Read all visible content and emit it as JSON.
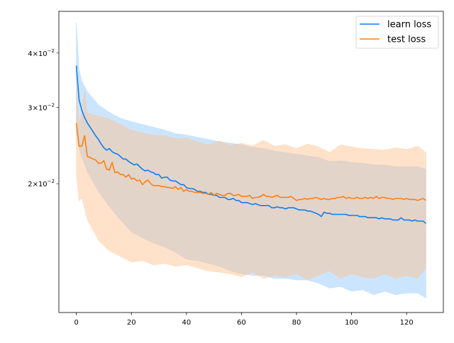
{
  "chart_data": {
    "type": "line",
    "title": "",
    "xlabel": "",
    "ylabel": "",
    "yscale": "log",
    "xlim": [
      -6.35,
      133.35
    ],
    "ylim": [
      0.0101,
      0.0499
    ],
    "grid": false,
    "legend_position": "top-right",
    "x_ticks": [
      0,
      20,
      40,
      60,
      80,
      100,
      120
    ],
    "x_tick_labels": [
      "0",
      "20",
      "40",
      "60",
      "80",
      "100",
      "120"
    ],
    "y_ticks": [
      0.02,
      0.03,
      0.04
    ],
    "y_tick_labels": [
      {
        "mant": "2",
        "exp": "−2"
      },
      {
        "mant": "3",
        "exp": "−2"
      },
      {
        "mant": "4",
        "exp": "−2"
      }
    ],
    "y_ticks_unlabeled": [
      0.05
    ],
    "series": [
      {
        "name": "learn loss",
        "color": "#0a7ff5",
        "band_color": "#8ec5ff",
        "values": [
          0.0374,
          0.0312,
          0.0295,
          0.0284,
          0.0276,
          0.027,
          0.0264,
          0.0258,
          0.0253,
          0.0247,
          0.0242,
          0.0239,
          0.0241,
          0.0237,
          0.0235,
          0.0234,
          0.0231,
          0.0228,
          0.0228,
          0.0225,
          0.0223,
          0.0221,
          0.0222,
          0.0219,
          0.0216,
          0.0214,
          0.0215,
          0.0213,
          0.0212,
          0.021,
          0.021,
          0.0206,
          0.0207,
          0.0207,
          0.0204,
          0.0203,
          0.0203,
          0.0201,
          0.0199,
          0.0199,
          0.0196,
          0.0195,
          0.0195,
          0.0194,
          0.0192,
          0.0192,
          0.0191,
          0.0191,
          0.0189,
          0.0189,
          0.0188,
          0.0188,
          0.0186,
          0.0186,
          0.0186,
          0.0184,
          0.0184,
          0.0185,
          0.0183,
          0.0183,
          0.0181,
          0.0181,
          0.0181,
          0.018,
          0.0179,
          0.018,
          0.0179,
          0.0178,
          0.0178,
          0.0178,
          0.0178,
          0.0176,
          0.0176,
          0.0177,
          0.0176,
          0.0176,
          0.0175,
          0.0176,
          0.0176,
          0.0176,
          0.0175,
          0.0174,
          0.0174,
          0.0174,
          0.0173,
          0.0173,
          0.0172,
          0.0171,
          0.017,
          0.0168,
          0.0172,
          0.0171,
          0.0171,
          0.017,
          0.017,
          0.017,
          0.017,
          0.017,
          0.017,
          0.0169,
          0.0169,
          0.0169,
          0.0169,
          0.0168,
          0.0168,
          0.0168,
          0.0167,
          0.0167,
          0.0167,
          0.0167,
          0.0166,
          0.0167,
          0.0166,
          0.0166,
          0.0166,
          0.0165,
          0.0165,
          0.0165,
          0.0167,
          0.0165,
          0.0165,
          0.0165,
          0.0164,
          0.0165,
          0.0164,
          0.0164,
          0.0164,
          0.0162
        ],
        "band_x": [
          0,
          1,
          2,
          3,
          4,
          8,
          12,
          16,
          20,
          24,
          28,
          32,
          36,
          40,
          44,
          48,
          52,
          56,
          60,
          64,
          68,
          72,
          76,
          80,
          84,
          88,
          92,
          96,
          100,
          104,
          108,
          112,
          116,
          120,
          124,
          127
        ],
        "band_upper": [
          0.047,
          0.0366,
          0.0345,
          0.0335,
          0.0326,
          0.0304,
          0.0292,
          0.0283,
          0.0278,
          0.0274,
          0.027,
          0.0266,
          0.0261,
          0.0259,
          0.0256,
          0.0253,
          0.025,
          0.0248,
          0.0246,
          0.0243,
          0.0241,
          0.0238,
          0.0236,
          0.0234,
          0.0232,
          0.023,
          0.0225,
          0.0226,
          0.0224,
          0.0223,
          0.0221,
          0.0221,
          0.0219,
          0.0219,
          0.0219,
          0.0216
        ],
        "band_lower": [
          0.0262,
          0.0241,
          0.023,
          0.0222,
          0.0213,
          0.0192,
          0.0177,
          0.0165,
          0.0155,
          0.015,
          0.0146,
          0.0143,
          0.0139,
          0.0134,
          0.0133,
          0.0131,
          0.0129,
          0.0126,
          0.0124,
          0.0123,
          0.0123,
          0.0121,
          0.0121,
          0.012,
          0.012,
          0.0118,
          0.0115,
          0.0116,
          0.0113,
          0.0114,
          0.0111,
          0.0113,
          0.0111,
          0.0112,
          0.0112,
          0.0109
        ]
      },
      {
        "name": "test loss",
        "color": "#ff7f0e",
        "band_color": "#ffbf87",
        "values": [
          0.0276,
          0.0244,
          0.0244,
          0.0258,
          0.0231,
          0.023,
          0.0228,
          0.0227,
          0.0223,
          0.0223,
          0.0226,
          0.0216,
          0.0215,
          0.0224,
          0.0212,
          0.0213,
          0.021,
          0.021,
          0.0207,
          0.021,
          0.0205,
          0.0206,
          0.0203,
          0.0204,
          0.0199,
          0.0202,
          0.0204,
          0.02,
          0.0198,
          0.0198,
          0.0198,
          0.0197,
          0.0197,
          0.0196,
          0.0196,
          0.0195,
          0.0197,
          0.0194,
          0.0196,
          0.0192,
          0.0194,
          0.0192,
          0.0192,
          0.0191,
          0.0191,
          0.0191,
          0.019,
          0.019,
          0.0189,
          0.0191,
          0.0188,
          0.019,
          0.0189,
          0.0188,
          0.0188,
          0.019,
          0.019,
          0.0188,
          0.0188,
          0.0189,
          0.0187,
          0.0187,
          0.0187,
          0.0188,
          0.0185,
          0.0186,
          0.0186,
          0.0187,
          0.0189,
          0.0187,
          0.0187,
          0.0186,
          0.0187,
          0.0188,
          0.0186,
          0.0186,
          0.0186,
          0.0186,
          0.0187,
          0.0185,
          0.0183,
          0.0184,
          0.0184,
          0.0185,
          0.0184,
          0.0185,
          0.0185,
          0.0186,
          0.0185,
          0.0184,
          0.0185,
          0.0184,
          0.0184,
          0.0185,
          0.0185,
          0.0186,
          0.0186,
          0.0187,
          0.0185,
          0.0186,
          0.0185,
          0.0185,
          0.0186,
          0.0185,
          0.0185,
          0.0186,
          0.0185,
          0.0186,
          0.0185,
          0.0187,
          0.0185,
          0.0186,
          0.0186,
          0.0185,
          0.0185,
          0.0184,
          0.0185,
          0.0185,
          0.0185,
          0.0184,
          0.0185,
          0.0184,
          0.0184,
          0.0184,
          0.0183,
          0.0184,
          0.0185,
          0.0183
        ],
        "band_x": [
          0,
          1,
          2,
          3,
          4,
          8,
          12,
          16,
          20,
          24,
          28,
          32,
          36,
          40,
          44,
          48,
          52,
          56,
          60,
          64,
          68,
          72,
          76,
          80,
          84,
          88,
          92,
          96,
          100,
          104,
          108,
          112,
          116,
          120,
          124,
          127
        ],
        "band_upper": [
          0.0339,
          0.0276,
          0.029,
          0.0329,
          0.0292,
          0.0286,
          0.0282,
          0.0274,
          0.0266,
          0.0262,
          0.0259,
          0.0258,
          0.0254,
          0.0255,
          0.025,
          0.0246,
          0.0251,
          0.0245,
          0.0248,
          0.0244,
          0.0252,
          0.0244,
          0.0246,
          0.0241,
          0.0247,
          0.0243,
          0.0236,
          0.0246,
          0.0243,
          0.0241,
          0.024,
          0.0239,
          0.0242,
          0.024,
          0.0244,
          0.0236
        ],
        "band_lower": [
          0.0212,
          0.0182,
          0.0186,
          0.0175,
          0.0165,
          0.0148,
          0.014,
          0.0136,
          0.0132,
          0.0133,
          0.013,
          0.0131,
          0.0129,
          0.013,
          0.0128,
          0.0126,
          0.0125,
          0.0124,
          0.0122,
          0.0125,
          0.0121,
          0.0123,
          0.0122,
          0.0124,
          0.012,
          0.0123,
          0.0126,
          0.0121,
          0.0124,
          0.0122,
          0.0121,
          0.0124,
          0.0121,
          0.0123,
          0.0121,
          0.0128
        ]
      }
    ]
  }
}
